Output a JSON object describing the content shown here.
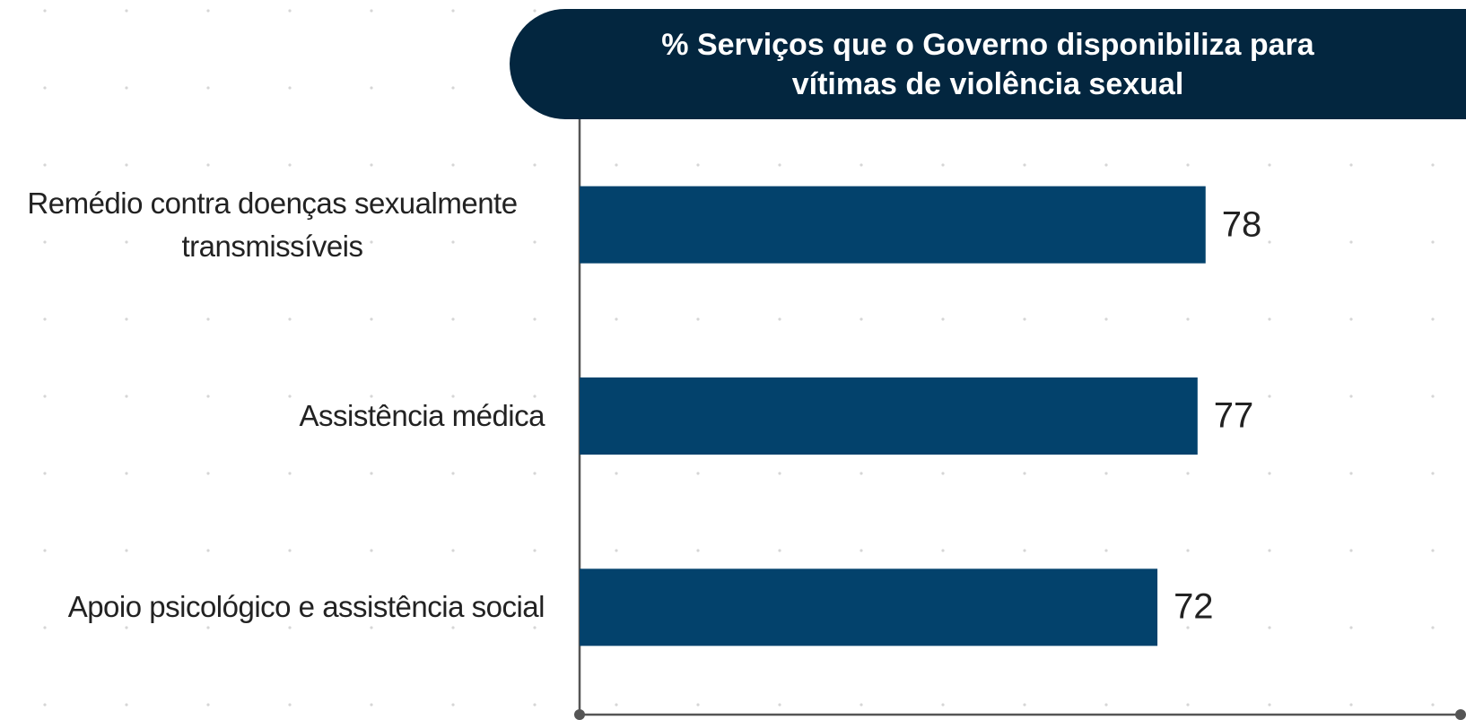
{
  "chart_data": {
    "type": "bar",
    "orientation": "horizontal",
    "title": "% Serviços que o Governo disponibiliza para vítimas de violência sexual",
    "categories": [
      "Remédio contra doenças sexualmente transmissíveis",
      "Assistência médica",
      "Apoio psicológico e assistência social"
    ],
    "values": [
      78,
      77,
      72
    ],
    "color": "#03426c",
    "xlim": [
      0,
      110
    ]
  }
}
